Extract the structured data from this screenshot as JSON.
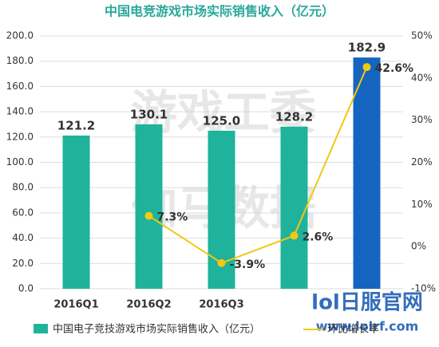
{
  "chart_data": {
    "type": "bar-line",
    "title": "中国电竞游戏市场实际销售收入（亿元）",
    "categories": [
      "2016Q1",
      "2016Q2",
      "2016Q3",
      null,
      null
    ],
    "series": [
      {
        "name": "中国电子竞技游戏市场实际销售收入（亿元）",
        "type": "bar",
        "color": "#1fb39b",
        "colors": [
          "#1fb39b",
          "#1fb39b",
          "#1fb39b",
          "#1fb39b",
          "#1565c0"
        ],
        "values": [
          121.2,
          130.1,
          125.0,
          128.2,
          182.9
        ],
        "value_labels": [
          "121.2",
          "130.1",
          "125.0",
          "128.2",
          "182.9"
        ]
      },
      {
        "name": "环比增长率",
        "type": "line",
        "axis": "y2",
        "color": "#f2c811",
        "values": [
          null,
          7.3,
          -3.9,
          2.6,
          42.6
        ],
        "value_labels": [
          null,
          "7.3%",
          "-3.9%",
          "2.6%",
          "42.6%"
        ]
      }
    ],
    "ylim": [
      0,
      200
    ],
    "yticks": [
      {
        "value": 0,
        "label": "0.0"
      },
      {
        "value": 20,
        "label": "20.0"
      },
      {
        "value": 40,
        "label": "40.0"
      },
      {
        "value": 60,
        "label": "60.0"
      },
      {
        "value": 80,
        "label": "80.0"
      },
      {
        "value": 100,
        "label": "100.0"
      },
      {
        "value": 120,
        "label": "120.0"
      },
      {
        "value": 140,
        "label": "140.0"
      },
      {
        "value": 160,
        "label": "160.0"
      },
      {
        "value": 180,
        "label": "180.0"
      },
      {
        "value": 200,
        "label": "200.0"
      }
    ],
    "y2lim": [
      -10,
      50
    ],
    "y2ticks": [
      {
        "value": -10,
        "label": "-10%"
      },
      {
        "value": 0,
        "label": "0%"
      },
      {
        "value": 10,
        "label": "10%"
      },
      {
        "value": 20,
        "label": "20%"
      },
      {
        "value": 30,
        "label": "30%"
      },
      {
        "value": 40,
        "label": "40%"
      },
      {
        "value": 50,
        "label": "50%"
      }
    ],
    "grid": true,
    "watermarks": [
      "游戏工委",
      "伽马数据",
      "lol日服官网",
      "www.lolrf.com"
    ]
  }
}
